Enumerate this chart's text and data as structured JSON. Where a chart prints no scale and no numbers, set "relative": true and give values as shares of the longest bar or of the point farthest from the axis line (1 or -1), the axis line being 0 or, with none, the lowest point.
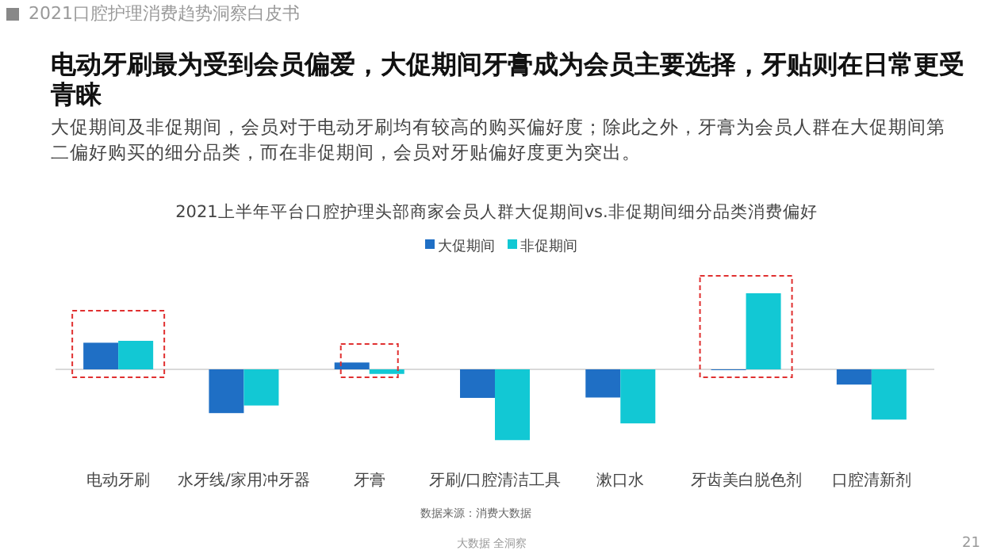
{
  "chart_data": {
    "type": "bar",
    "relative": true,
    "title": "2021上半年平台口腔护理头部商家会员人群大促期间vs.非促期间细分品类消费偏好",
    "categories": [
      "电动牙刷",
      "水牙线/家用冲牙器",
      "牙膏",
      "牙刷/口腔清洁工具",
      "漱口水",
      "牙齿美白脱色剂",
      "口腔清新剂"
    ],
    "series": [
      {
        "name": "大促期间",
        "color": "#1f6fc5",
        "values": [
          0.35,
          -0.575,
          0.09,
          -0.375,
          -0.37,
          -0.01,
          -0.2
        ]
      },
      {
        "name": "非促期间",
        "color": "#12c8d4",
        "values": [
          0.375,
          -0.475,
          -0.06,
          -0.93,
          -0.71,
          1,
          -0.66
        ]
      }
    ],
    "legend": "top",
    "annotations": [
      "2021口腔护理消费趋势洞察白皮书",
      "电动牙刷最为受到会员偏爱，大促期间牙膏成为会员主要选择，牙贴则在日常更受青睐",
      "大促期间及非促期间，会员对于电动牙刷均有较高的购买偏好度；除此之外，牙膏为会员人群在大促期间第二偏好购买的细分品类，而在非促期间，会员对牙贴偏好度更为突出。",
      "数据来源：消费大数据",
      "大数据 全洞察",
      "21"
    ]
  }
}
